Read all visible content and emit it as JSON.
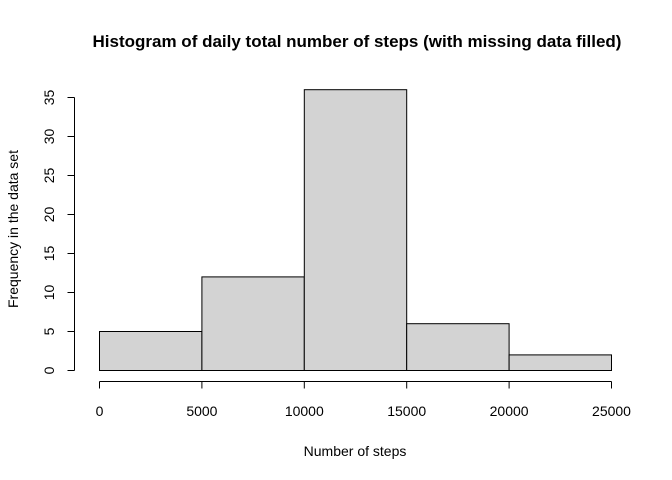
{
  "chart_data": {
    "type": "bar",
    "title": "Histogram of daily total number of steps (with missing data filled)",
    "xlabel": "Number of steps",
    "ylabel": "Frequency in the data set",
    "bins": [
      {
        "from": 0,
        "to": 5000,
        "count": 5
      },
      {
        "from": 5000,
        "to": 10000,
        "count": 12
      },
      {
        "from": 10000,
        "to": 15000,
        "count": 36
      },
      {
        "from": 15000,
        "to": 20000,
        "count": 6
      },
      {
        "from": 20000,
        "to": 25000,
        "count": 2
      }
    ],
    "xlim": [
      0,
      25000
    ],
    "ylim": [
      0,
      35
    ],
    "x_ticks": [
      0,
      5000,
      10000,
      15000,
      20000,
      25000
    ],
    "y_ticks": [
      0,
      5,
      10,
      15,
      20,
      25,
      30,
      35
    ],
    "bar_color": "#d3d3d3",
    "grid": false,
    "legend": "none"
  }
}
